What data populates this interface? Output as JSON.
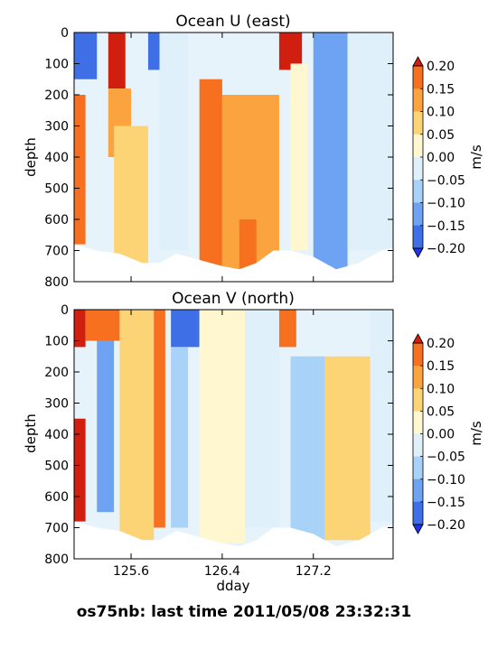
{
  "chart_data": [
    {
      "type": "heatmap",
      "title": "Ocean U (east)",
      "xlabel": "",
      "ylabel": "depth",
      "xlim": [
        125.1,
        127.9
      ],
      "ylim": [
        800,
        0
      ],
      "yticks": [
        "0",
        "100",
        "200",
        "300",
        "400",
        "500",
        "600",
        "700",
        "800"
      ],
      "xticks": [],
      "colorbar": {
        "label": "m/s",
        "range": [
          -0.2,
          0.2
        ],
        "ticks": [
          "0.20",
          "0.15",
          "0.10",
          "0.05",
          "0.00",
          "−0.05",
          "−0.10",
          "−0.15",
          "−0.20"
        ],
        "levels": [
          -0.2,
          -0.15,
          -0.1,
          -0.05,
          0,
          0.05,
          0.1,
          0.15,
          0.2
        ],
        "colors": [
          "#1f33e8",
          "#3f6fe6",
          "#6da3f2",
          "#a8d2f7",
          "#dff0fb",
          "#fff7d0",
          "#fcd476",
          "#fba43f",
          "#f6701f",
          "#d01f0e"
        ],
        "extend": "both"
      },
      "valid_depth_max_by_time": [
        {
          "x": 125.1,
          "depth": 680
        },
        {
          "x": 125.3,
          "depth": 700
        },
        {
          "x": 125.5,
          "depth": 710
        },
        {
          "x": 125.7,
          "depth": 740
        },
        {
          "x": 125.85,
          "depth": 740
        },
        {
          "x": 126.0,
          "depth": 710
        },
        {
          "x": 126.2,
          "depth": 730
        },
        {
          "x": 126.4,
          "depth": 750
        },
        {
          "x": 126.55,
          "depth": 760
        },
        {
          "x": 126.7,
          "depth": 740
        },
        {
          "x": 126.85,
          "depth": 700
        },
        {
          "x": 127.0,
          "depth": 700
        },
        {
          "x": 127.2,
          "depth": 720
        },
        {
          "x": 127.4,
          "depth": 760
        },
        {
          "x": 127.6,
          "depth": 740
        },
        {
          "x": 127.8,
          "depth": 700
        },
        {
          "x": 127.9,
          "depth": 690
        }
      ],
      "features": [
        {
          "x_start": 125.1,
          "x_end": 125.3,
          "depth_top": 0,
          "depth_bottom": 150,
          "value": -0.2
        },
        {
          "x_start": 125.1,
          "x_end": 125.2,
          "depth_top": 200,
          "depth_bottom": 680,
          "value": 0.15
        },
        {
          "x_start": 125.4,
          "x_end": 125.55,
          "depth_top": 0,
          "depth_bottom": 180,
          "value": 0.2
        },
        {
          "x_start": 125.4,
          "x_end": 125.6,
          "depth_top": 180,
          "depth_bottom": 400,
          "value": 0.12
        },
        {
          "x_start": 125.45,
          "x_end": 125.75,
          "depth_top": 300,
          "depth_bottom": 740,
          "value": 0.07
        },
        {
          "x_start": 125.75,
          "x_end": 125.85,
          "depth_top": 0,
          "depth_bottom": 120,
          "value": -0.2
        },
        {
          "x_start": 125.85,
          "x_end": 126.1,
          "depth_top": 0,
          "depth_bottom": 700,
          "value": -0.05
        },
        {
          "x_start": 126.2,
          "x_end": 126.4,
          "depth_top": 150,
          "depth_bottom": 750,
          "value": 0.15
        },
        {
          "x_start": 126.4,
          "x_end": 126.9,
          "depth_top": 200,
          "depth_bottom": 760,
          "value": 0.13
        },
        {
          "x_start": 126.55,
          "x_end": 126.7,
          "depth_top": 600,
          "depth_bottom": 760,
          "value": 0.17
        },
        {
          "x_start": 126.9,
          "x_end": 127.1,
          "depth_top": 0,
          "depth_bottom": 120,
          "value": 0.2
        },
        {
          "x_start": 127.0,
          "x_end": 127.15,
          "depth_top": 100,
          "depth_bottom": 700,
          "value": 0.03
        },
        {
          "x_start": 127.2,
          "x_end": 127.5,
          "depth_top": 0,
          "depth_bottom": 760,
          "value": -0.12
        },
        {
          "x_start": 127.5,
          "x_end": 127.9,
          "depth_top": 0,
          "depth_bottom": 700,
          "value": -0.05
        }
      ]
    },
    {
      "type": "heatmap",
      "title": "Ocean V (north)",
      "xlabel": "dday",
      "ylabel": "depth",
      "xlim": [
        125.1,
        127.9
      ],
      "ylim": [
        800,
        0
      ],
      "yticks": [
        "0",
        "100",
        "200",
        "300",
        "400",
        "500",
        "600",
        "700",
        "800"
      ],
      "xticks": [
        "125.6",
        "126.4",
        "127.2"
      ],
      "xtick_values": [
        125.6,
        126.4,
        127.2
      ],
      "colorbar": {
        "label": "m/s",
        "range": [
          -0.2,
          0.2
        ],
        "ticks": [
          "0.20",
          "0.15",
          "0.10",
          "0.05",
          "0.00",
          "−0.05",
          "−0.10",
          "−0.15",
          "−0.20"
        ],
        "levels": [
          -0.2,
          -0.15,
          -0.1,
          -0.05,
          0,
          0.05,
          0.1,
          0.15,
          0.2
        ],
        "colors": [
          "#1f33e8",
          "#3f6fe6",
          "#6da3f2",
          "#a8d2f7",
          "#dff0fb",
          "#fff7d0",
          "#fcd476",
          "#fba43f",
          "#f6701f",
          "#d01f0e"
        ],
        "extend": "both"
      },
      "valid_depth_max_by_time": [
        {
          "x": 125.1,
          "depth": 680
        },
        {
          "x": 125.3,
          "depth": 700
        },
        {
          "x": 125.5,
          "depth": 710
        },
        {
          "x": 125.7,
          "depth": 740
        },
        {
          "x": 125.85,
          "depth": 740
        },
        {
          "x": 126.0,
          "depth": 710
        },
        {
          "x": 126.2,
          "depth": 730
        },
        {
          "x": 126.4,
          "depth": 750
        },
        {
          "x": 126.55,
          "depth": 760
        },
        {
          "x": 126.7,
          "depth": 740
        },
        {
          "x": 126.85,
          "depth": 700
        },
        {
          "x": 127.0,
          "depth": 700
        },
        {
          "x": 127.2,
          "depth": 720
        },
        {
          "x": 127.4,
          "depth": 760
        },
        {
          "x": 127.6,
          "depth": 740
        },
        {
          "x": 127.8,
          "depth": 700
        },
        {
          "x": 127.9,
          "depth": 690
        }
      ],
      "features": [
        {
          "x_start": 125.1,
          "x_end": 125.2,
          "depth_top": 0,
          "depth_bottom": 120,
          "value": 0.2
        },
        {
          "x_start": 125.1,
          "x_end": 125.2,
          "depth_top": 350,
          "depth_bottom": 680,
          "value": 0.2
        },
        {
          "x_start": 125.2,
          "x_end": 125.5,
          "depth_top": 0,
          "depth_bottom": 100,
          "value": 0.15
        },
        {
          "x_start": 125.3,
          "x_end": 125.45,
          "depth_top": 100,
          "depth_bottom": 650,
          "value": -0.12
        },
        {
          "x_start": 125.5,
          "x_end": 125.8,
          "depth_top": 0,
          "depth_bottom": 740,
          "value": 0.05
        },
        {
          "x_start": 125.8,
          "x_end": 125.9,
          "depth_top": 0,
          "depth_bottom": 700,
          "value": 0.15
        },
        {
          "x_start": 125.95,
          "x_end": 126.2,
          "depth_top": 0,
          "depth_bottom": 120,
          "value": -0.2
        },
        {
          "x_start": 125.95,
          "x_end": 126.1,
          "depth_top": 120,
          "depth_bottom": 700,
          "value": -0.08
        },
        {
          "x_start": 126.2,
          "x_end": 126.6,
          "depth_top": 0,
          "depth_bottom": 750,
          "value": 0.04
        },
        {
          "x_start": 126.6,
          "x_end": 126.9,
          "depth_top": 0,
          "depth_bottom": 700,
          "value": -0.05
        },
        {
          "x_start": 126.9,
          "x_end": 127.05,
          "depth_top": 0,
          "depth_bottom": 120,
          "value": 0.15
        },
        {
          "x_start": 127.0,
          "x_end": 127.3,
          "depth_top": 150,
          "depth_bottom": 750,
          "value": -0.06
        },
        {
          "x_start": 127.3,
          "x_end": 127.7,
          "depth_top": 150,
          "depth_bottom": 740,
          "value": 0.07
        },
        {
          "x_start": 127.7,
          "x_end": 127.9,
          "depth_top": 0,
          "depth_bottom": 680,
          "value": -0.05
        }
      ]
    }
  ],
  "footer": {
    "label": "os75nb: last time 2011/05/08 23:32:31"
  }
}
